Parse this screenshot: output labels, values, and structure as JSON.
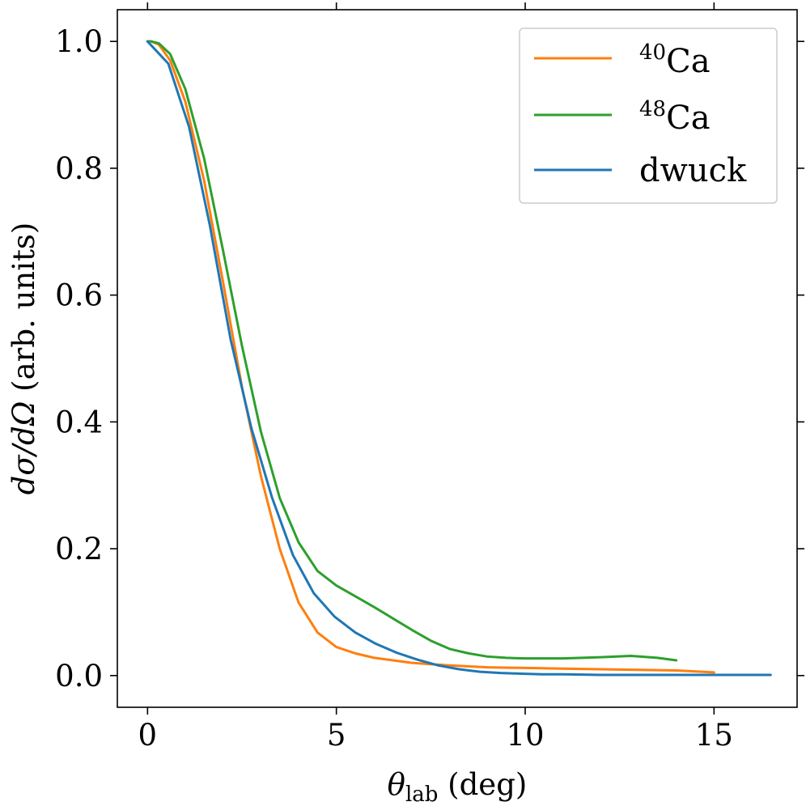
{
  "chart_data": {
    "type": "line",
    "xlabel": "θlab (deg)",
    "xlabel_parts": {
      "symbol": "θ",
      "subscript": "lab",
      "unit": " (deg)"
    },
    "ylabel": "dσ/dΩ (arb. units)",
    "ylabel_parts": {
      "math": "dσ/dΩ",
      "text": " (arb. units)"
    },
    "xlim": [
      -0.8,
      17.2
    ],
    "ylim": [
      -0.05,
      1.05
    ],
    "xticks": [
      0,
      5,
      10,
      15
    ],
    "xtick_labels": [
      "0",
      "5",
      "10",
      "15"
    ],
    "yticks": [
      0.0,
      0.2,
      0.4,
      0.6,
      0.8,
      1.0
    ],
    "ytick_labels": [
      "0.0",
      "0.2",
      "0.4",
      "0.6",
      "0.8",
      "1.0"
    ],
    "legend_position": "top-right",
    "series": [
      {
        "name": "40Ca",
        "label_sup": "40",
        "label_base": "Ca",
        "color": "#ff7f0e",
        "x": [
          0,
          0.1,
          0.3,
          0.6,
          1.0,
          1.5,
          2.0,
          2.5,
          3.0,
          3.5,
          4.0,
          4.5,
          5.0,
          5.5,
          6.0,
          6.5,
          7.0,
          7.5,
          8.0,
          9.0,
          10.0,
          11.0,
          12.0,
          13.0,
          14.0,
          15.0
        ],
        "y": [
          1.0,
          1.0,
          0.995,
          0.97,
          0.905,
          0.78,
          0.62,
          0.455,
          0.315,
          0.2,
          0.115,
          0.068,
          0.045,
          0.035,
          0.028,
          0.024,
          0.02,
          0.018,
          0.016,
          0.013,
          0.012,
          0.011,
          0.01,
          0.009,
          0.008,
          0.005
        ]
      },
      {
        "name": "48Ca",
        "label_sup": "48",
        "label_base": "Ca",
        "color": "#2ca02c",
        "x": [
          0,
          0.1,
          0.3,
          0.6,
          1.0,
          1.5,
          2.0,
          2.5,
          3.0,
          3.5,
          4.0,
          4.5,
          5.0,
          5.5,
          6.0,
          6.5,
          7.0,
          7.5,
          8.0,
          8.5,
          9.0,
          9.5,
          10.0,
          11.0,
          12.0,
          12.8,
          13.5,
          14.0
        ],
        "y": [
          1.0,
          1.0,
          0.997,
          0.98,
          0.925,
          0.815,
          0.67,
          0.52,
          0.385,
          0.28,
          0.21,
          0.165,
          0.142,
          0.125,
          0.108,
          0.09,
          0.072,
          0.055,
          0.042,
          0.035,
          0.03,
          0.028,
          0.027,
          0.027,
          0.029,
          0.031,
          0.028,
          0.024
        ]
      },
      {
        "name": "dwuck",
        "label_sup": "",
        "label_base": "dwuck",
        "color": "#1f77b4",
        "x": [
          0,
          0.55,
          1.1,
          1.65,
          2.2,
          2.75,
          3.3,
          3.85,
          4.4,
          4.95,
          5.5,
          6.05,
          6.6,
          7.15,
          7.7,
          8.25,
          8.8,
          9.35,
          9.9,
          10.45,
          11.0,
          12.0,
          13.0,
          14.0,
          15.0,
          16.5
        ],
        "y": [
          1.0,
          0.965,
          0.865,
          0.71,
          0.53,
          0.39,
          0.28,
          0.19,
          0.13,
          0.093,
          0.068,
          0.05,
          0.036,
          0.025,
          0.016,
          0.01,
          0.006,
          0.004,
          0.003,
          0.002,
          0.002,
          0.001,
          0.001,
          0.001,
          0.001,
          0.001
        ]
      }
    ]
  }
}
